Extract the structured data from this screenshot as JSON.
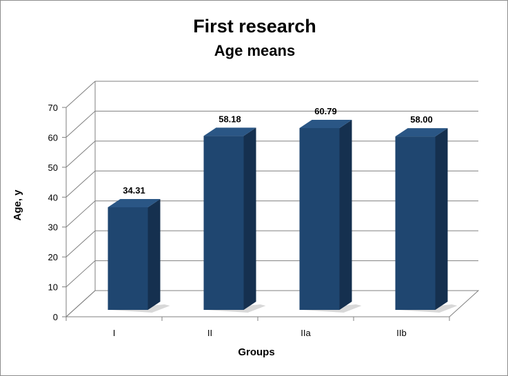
{
  "chart_data": {
    "type": "bar",
    "title": "First research",
    "subtitle": "Age means",
    "xlabel": "Groups",
    "ylabel": "Age, y",
    "categories": [
      "I",
      "II",
      "IIa",
      "IIb"
    ],
    "values": [
      34.31,
      58.18,
      60.79,
      58.0
    ],
    "data_labels": [
      "34.31",
      "58.18",
      "60.79",
      "58.00"
    ],
    "ylim": [
      0,
      70
    ],
    "yticks": [
      0,
      10,
      20,
      30,
      40,
      50,
      60,
      70
    ],
    "grid": true,
    "three_d": true,
    "colors": {
      "bar_front": "#1f4670",
      "bar_side": "#15304f",
      "bar_top": "#2a5685",
      "grid": "#7f7f7f"
    }
  }
}
